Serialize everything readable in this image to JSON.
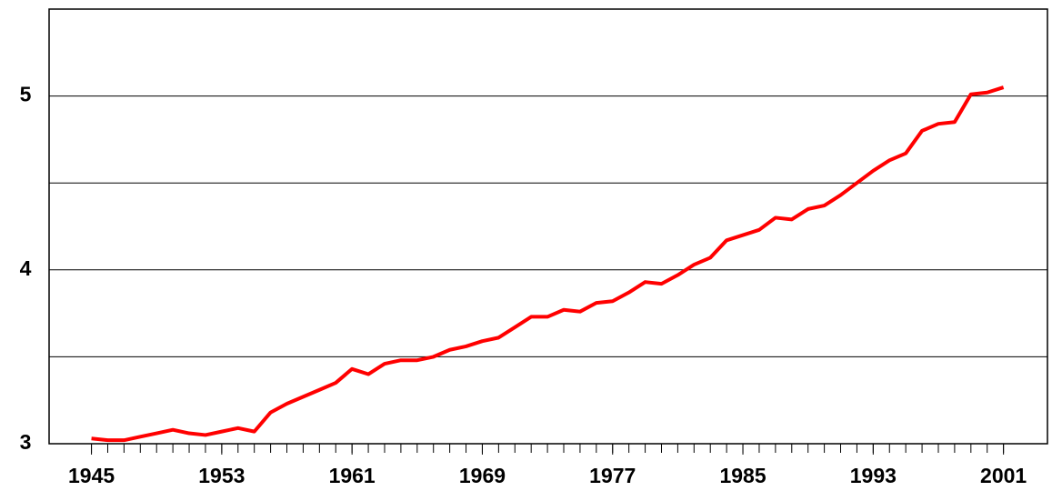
{
  "chart_data": {
    "type": "line",
    "x": [
      1945,
      1946,
      1947,
      1948,
      1949,
      1950,
      1951,
      1952,
      1953,
      1954,
      1955,
      1956,
      1957,
      1958,
      1959,
      1960,
      1961,
      1962,
      1963,
      1964,
      1965,
      1966,
      1967,
      1968,
      1969,
      1970,
      1971,
      1972,
      1973,
      1974,
      1975,
      1976,
      1977,
      1978,
      1979,
      1980,
      1981,
      1982,
      1983,
      1984,
      1985,
      1986,
      1987,
      1988,
      1989,
      1990,
      1991,
      1992,
      1993,
      1994,
      1995,
      1996,
      1997,
      1998,
      1999,
      2000,
      2001
    ],
    "series": [
      {
        "color": "#ff0000",
        "values": [
          3.03,
          3.02,
          3.02,
          3.04,
          3.06,
          3.08,
          3.06,
          3.05,
          3.07,
          3.09,
          3.07,
          3.18,
          3.23,
          3.27,
          3.31,
          3.35,
          3.43,
          3.4,
          3.46,
          3.48,
          3.48,
          3.5,
          3.54,
          3.56,
          3.59,
          3.61,
          3.67,
          3.73,
          3.73,
          3.77,
          3.76,
          3.81,
          3.82,
          3.87,
          3.93,
          3.92,
          3.97,
          4.03,
          4.07,
          4.17,
          4.2,
          4.23,
          4.3,
          4.29,
          4.35,
          4.37,
          4.43,
          4.5,
          4.57,
          4.63,
          4.67,
          4.8,
          4.84,
          4.85,
          5.01,
          5.02,
          5.05
        ]
      }
    ],
    "xlim": [
      1942.4,
      2003.7
    ],
    "xticks": [
      1945,
      1953,
      1961,
      1969,
      1977,
      1985,
      1993,
      2001
    ],
    "x_minor_step": 1,
    "ylim": [
      3,
      5.5
    ],
    "yticks": [
      3,
      4,
      5
    ],
    "minor_yticks": [
      3.5,
      4.5
    ],
    "grid": true
  }
}
